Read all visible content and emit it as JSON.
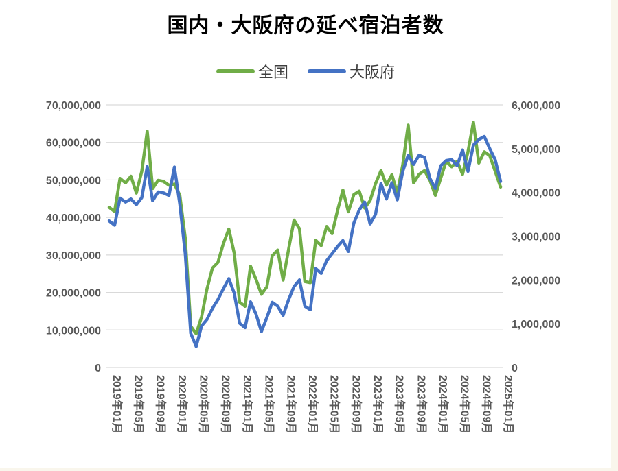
{
  "title": "国内・大阪府の延べ宿泊者数",
  "legend": {
    "items": [
      {
        "label": "全国",
        "color": "#70AD47"
      },
      {
        "label": "大阪府",
        "color": "#4472C4"
      }
    ]
  },
  "colors": {
    "nationwide": "#70AD47",
    "osaka": "#4472C4",
    "gridline": "#d9d9d9",
    "axis_text": "#595959",
    "chart_background": "#ffffff",
    "page_background": "#f9f6ec"
  },
  "chart_data": {
    "type": "line",
    "title": "国内・大阪府の延べ宿泊者数",
    "x_unit": "month",
    "grid": "horizontal",
    "legend_position": "top",
    "left_axis": {
      "min": 0,
      "max": 70000000,
      "step": 10000000,
      "ticks": [
        "0",
        "10,000,000",
        "20,000,000",
        "30,000,000",
        "40,000,000",
        "50,000,000",
        "60,000,000",
        "70,000,000"
      ]
    },
    "right_axis": {
      "min": 0,
      "max": 6000000,
      "step": 1000000,
      "ticks": [
        "0",
        "1,000,000",
        "2,000,000",
        "3,000,000",
        "4,000,000",
        "5,000,000",
        "6,000,000"
      ]
    },
    "x_tick_labels": [
      "2019年01月",
      "2019年05月",
      "2019年09月",
      "2020年01月",
      "2020年05月",
      "2020年09月",
      "2021年01月",
      "2021年05月",
      "2021年09月",
      "2022年01月",
      "2022年05月",
      "2022年09月",
      "2023年01月",
      "2023年05月",
      "2023年09月",
      "2024年01月",
      "2024年05月",
      "2024年09月",
      "2025年01月"
    ],
    "x_tick_every": 4,
    "categories": [
      "2019-01",
      "2019-02",
      "2019-03",
      "2019-04",
      "2019-05",
      "2019-06",
      "2019-07",
      "2019-08",
      "2019-09",
      "2019-10",
      "2019-11",
      "2019-12",
      "2020-01",
      "2020-02",
      "2020-03",
      "2020-04",
      "2020-05",
      "2020-06",
      "2020-07",
      "2020-08",
      "2020-09",
      "2020-10",
      "2020-11",
      "2020-12",
      "2021-01",
      "2021-02",
      "2021-03",
      "2021-04",
      "2021-05",
      "2021-06",
      "2021-07",
      "2021-08",
      "2021-09",
      "2021-10",
      "2021-11",
      "2021-12",
      "2022-01",
      "2022-02",
      "2022-03",
      "2022-04",
      "2022-05",
      "2022-06",
      "2022-07",
      "2022-08",
      "2022-09",
      "2022-10",
      "2022-11",
      "2022-12",
      "2023-01",
      "2023-02",
      "2023-03",
      "2023-04",
      "2023-05",
      "2023-06",
      "2023-07",
      "2023-08",
      "2023-09",
      "2023-10",
      "2023-11",
      "2023-12",
      "2024-01",
      "2024-02",
      "2024-03",
      "2024-04",
      "2024-05",
      "2024-06",
      "2024-07",
      "2024-08",
      "2024-09",
      "2024-10",
      "2024-11",
      "2024-12",
      "2025-01"
    ],
    "series": [
      {
        "name": "全国",
        "axis": "left",
        "color": "#70AD47",
        "values": [
          42700000,
          41600000,
          50400000,
          49200000,
          51000000,
          46500000,
          52300000,
          63000000,
          47700000,
          49900000,
          49600000,
          48600000,
          48900000,
          45900000,
          34500000,
          11000000,
          9000000,
          13500000,
          21000000,
          26500000,
          28000000,
          33000000,
          36900000,
          30500000,
          17400000,
          16300000,
          27000000,
          23500000,
          19500000,
          21500000,
          29800000,
          31300000,
          23300000,
          31500000,
          39300000,
          37000000,
          22900000,
          22600000,
          33900000,
          32500000,
          37600000,
          35700000,
          41800000,
          47300000,
          41500000,
          46100000,
          47000000,
          42500000,
          44500000,
          49000000,
          52500000,
          48600000,
          51400000,
          46500000,
          54000000,
          64600000,
          49200000,
          51500000,
          52500000,
          49900000,
          45900000,
          50500000,
          55000000,
          53500000,
          55000000,
          51500000,
          57500000,
          65400000,
          54500000,
          57500000,
          56500000,
          52300000,
          48100000
        ]
      },
      {
        "name": "大阪府",
        "axis": "right",
        "color": "#4472C4",
        "values": [
          3350000,
          3250000,
          3870000,
          3780000,
          3850000,
          3720000,
          3880000,
          4590000,
          3810000,
          4010000,
          3990000,
          3930000,
          4580000,
          3730000,
          2600000,
          780000,
          480000,
          950000,
          1100000,
          1350000,
          1550000,
          1800000,
          2030000,
          1700000,
          1010000,
          910000,
          1500000,
          1220000,
          820000,
          1140000,
          1490000,
          1400000,
          1190000,
          1550000,
          1850000,
          2000000,
          1400000,
          1320000,
          2260000,
          2150000,
          2440000,
          2600000,
          2760000,
          2900000,
          2650000,
          3300000,
          3600000,
          3780000,
          3280000,
          3500000,
          4200000,
          3850000,
          4220000,
          3830000,
          4480000,
          4850000,
          4640000,
          4850000,
          4800000,
          4320000,
          4090000,
          4610000,
          4730000,
          4750000,
          4610000,
          4970000,
          4480000,
          5080000,
          5210000,
          5280000,
          5000000,
          4750000,
          4250000
        ]
      }
    ]
  }
}
